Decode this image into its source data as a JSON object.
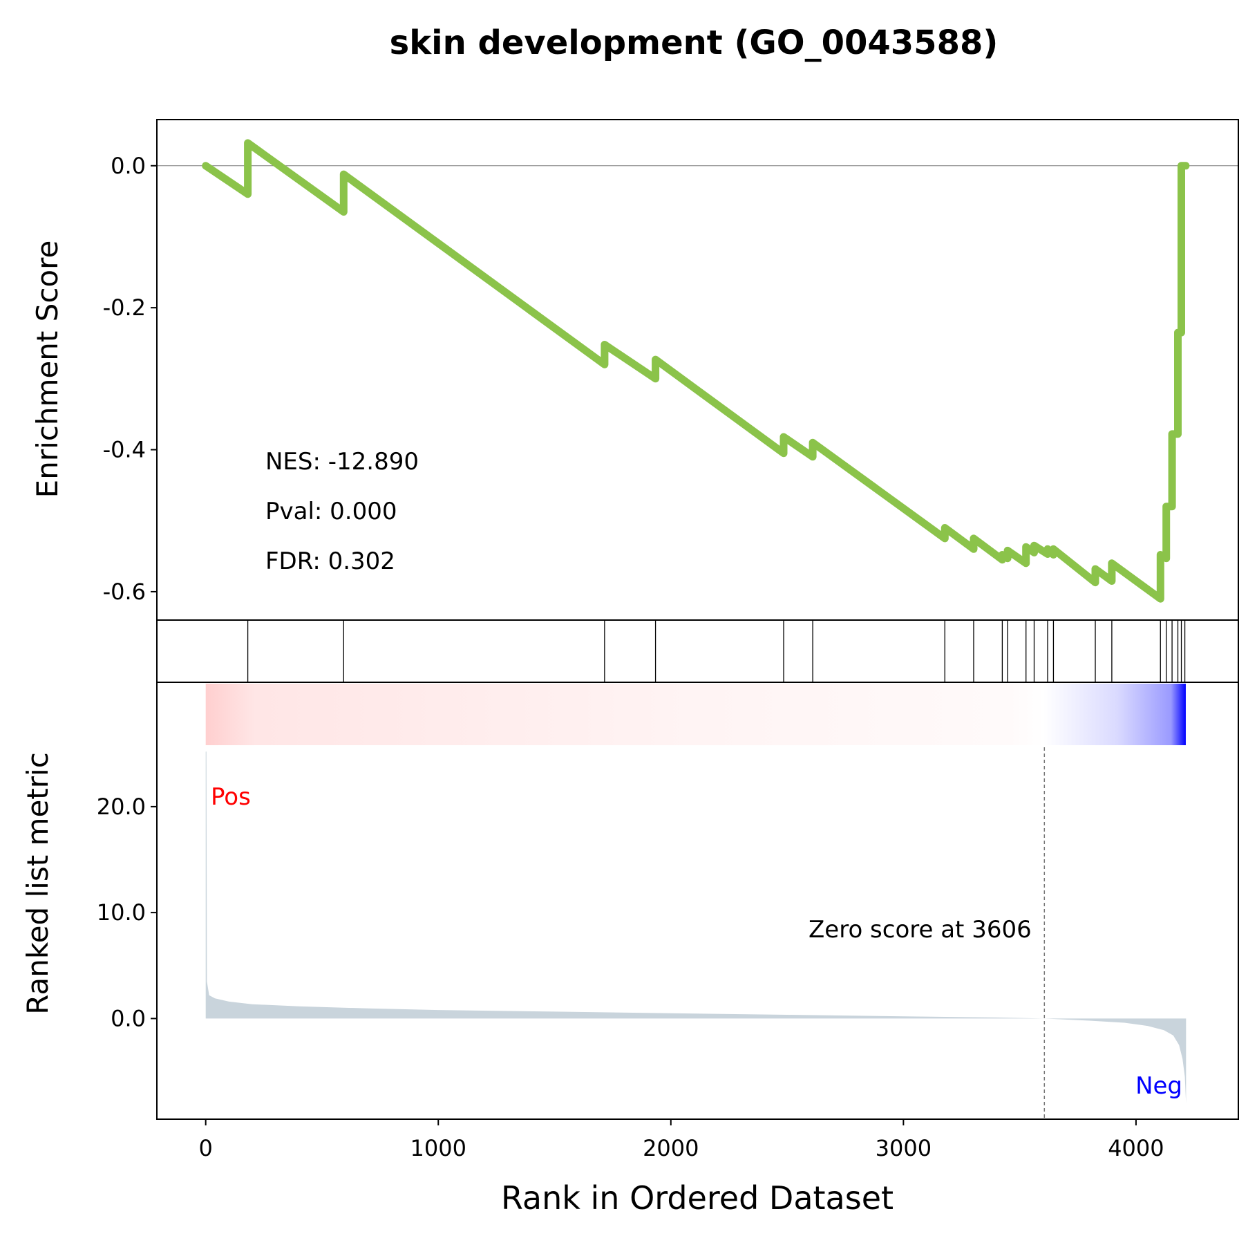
{
  "chart_data": {
    "type": "line",
    "title": "skin development (GO_0043588)",
    "xlabel": "Rank in Ordered Dataset",
    "xlim": [
      -210,
      4440
    ],
    "x_ticks": [
      "0",
      "1000",
      "2000",
      "3000",
      "4000"
    ],
    "x_tick_values": [
      0,
      1000,
      2000,
      3000,
      4000
    ],
    "n_genes": 4215,
    "colors": {
      "es_line": "#8bc34a",
      "pos": "#ff0000",
      "neg": "#0000ff",
      "metric_fill": "#c9d4dc",
      "axis": "#000000"
    },
    "enrichment": {
      "ylabel": "Enrichment Score",
      "ylim": [
        -0.64,
        0.065
      ],
      "y_ticks": [
        "0.0",
        "-0.2",
        "-0.4",
        "-0.6"
      ],
      "y_tick_values": [
        0.0,
        -0.2,
        -0.4,
        -0.6
      ],
      "stats": {
        "nes": "NES: -12.890",
        "pval": "Pval: 0.000",
        "fdr": "FDR: 0.302"
      },
      "points": [
        [
          0,
          0.0
        ],
        [
          181,
          -0.04
        ],
        [
          181,
          0.032
        ],
        [
          593,
          -0.065
        ],
        [
          593,
          -0.012
        ],
        [
          1715,
          -0.28
        ],
        [
          1715,
          -0.252
        ],
        [
          1934,
          -0.3
        ],
        [
          1934,
          -0.273
        ],
        [
          2485,
          -0.405
        ],
        [
          2485,
          -0.382
        ],
        [
          2610,
          -0.41
        ],
        [
          2610,
          -0.39
        ],
        [
          3178,
          -0.525
        ],
        [
          3178,
          -0.51
        ],
        [
          3302,
          -0.54
        ],
        [
          3302,
          -0.525
        ],
        [
          3425,
          -0.555
        ],
        [
          3425,
          -0.548
        ],
        [
          3448,
          -0.553
        ],
        [
          3448,
          -0.542
        ],
        [
          3527,
          -0.56
        ],
        [
          3527,
          -0.537
        ],
        [
          3562,
          -0.545
        ],
        [
          3562,
          -0.535
        ],
        [
          3620,
          -0.547
        ],
        [
          3620,
          -0.54
        ],
        [
          3645,
          -0.548
        ],
        [
          3645,
          -0.54
        ],
        [
          3825,
          -0.587
        ],
        [
          3825,
          -0.568
        ],
        [
          3896,
          -0.585
        ],
        [
          3896,
          -0.56
        ],
        [
          4105,
          -0.61
        ],
        [
          4105,
          -0.548
        ],
        [
          4130,
          -0.553
        ],
        [
          4130,
          -0.48
        ],
        [
          4155,
          -0.48
        ],
        [
          4155,
          -0.378
        ],
        [
          4180,
          -0.378
        ],
        [
          4180,
          -0.235
        ],
        [
          4195,
          -0.235
        ],
        [
          4195,
          0.0
        ],
        [
          4214,
          0.0
        ]
      ]
    },
    "hits": [
      181,
      593,
      1715,
      1934,
      2485,
      2610,
      3178,
      3302,
      3425,
      3448,
      3527,
      3562,
      3620,
      3645,
      3825,
      3896,
      4105,
      4130,
      4155,
      4180,
      4195,
      4210
    ],
    "ranked_metric": {
      "ylabel": "Ranked list metric",
      "ylim": [
        -9.5,
        25.8
      ],
      "y_ticks": [
        "20.0",
        "10.0",
        "0.0"
      ],
      "y_tick_values": [
        20,
        10,
        0
      ],
      "zero_cross": 3606,
      "zero_label": "Zero score at 3606",
      "pos_label": "Pos",
      "neg_label": "Neg",
      "points": [
        [
          0,
          25.2
        ],
        [
          3,
          25.2
        ],
        [
          5,
          3.5
        ],
        [
          15,
          2.2
        ],
        [
          40,
          1.9
        ],
        [
          100,
          1.6
        ],
        [
          200,
          1.35
        ],
        [
          400,
          1.15
        ],
        [
          700,
          0.95
        ],
        [
          1000,
          0.8
        ],
        [
          1500,
          0.65
        ],
        [
          2000,
          0.5
        ],
        [
          2500,
          0.35
        ],
        [
          3000,
          0.2
        ],
        [
          3400,
          0.1
        ],
        [
          3606,
          0.0
        ],
        [
          3800,
          -0.2
        ],
        [
          3950,
          -0.4
        ],
        [
          4050,
          -0.7
        ],
        [
          4120,
          -1.1
        ],
        [
          4160,
          -1.6
        ],
        [
          4185,
          -2.5
        ],
        [
          4200,
          -3.8
        ],
        [
          4210,
          -5.5
        ],
        [
          4215,
          -8.0
        ]
      ]
    }
  }
}
